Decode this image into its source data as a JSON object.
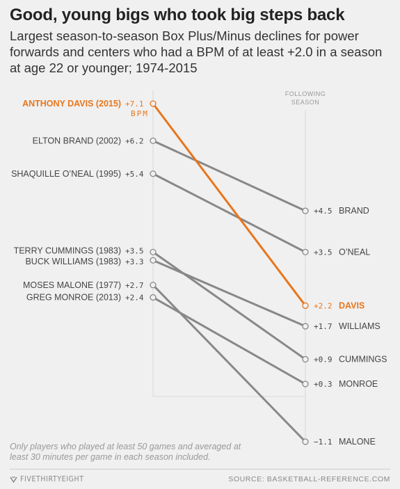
{
  "title": "Good, young bigs who took big steps back",
  "subtitle": "Largest season-to-season Box Plus/Minus declines for power forwards and centers who had a BPM of at least +2.0 in a season at age 22 or younger; 1974-2015",
  "column_header": [
    "FOLLOWING",
    "SEASON"
  ],
  "note": "Only players who played at least 50 games and averaged at least 30 minutes per game in each season included.",
  "footer": {
    "brand": "FIVETHIRTYEIGHT",
    "source": "SOURCE: BASKETBALL-REFERENCE.COM"
  },
  "colors": {
    "highlight": "#e8761d",
    "line": "#888888",
    "background": "#f0f0f0"
  },
  "chart_data": {
    "type": "slope",
    "unit_label": "BPM",
    "y_scale": "linear",
    "ylim": [
      -1.1,
      7.1
    ],
    "players": [
      {
        "left_label": "ANTHONY DAVIS (2015)",
        "right_label": "DAVIS",
        "before": 7.1,
        "after": 2.2,
        "before_text": "+7.1",
        "after_text": "+2.2",
        "highlight": true
      },
      {
        "left_label": "ELTON BRAND (2002)",
        "right_label": "BRAND",
        "before": 6.2,
        "after": 4.5,
        "before_text": "+6.2",
        "after_text": "+4.5",
        "highlight": false
      },
      {
        "left_label": "SHAQUILLE O’NEAL (1995)",
        "right_label": "O’NEAL",
        "before": 5.4,
        "after": 3.5,
        "before_text": "+5.4",
        "after_text": "+3.5",
        "highlight": false
      },
      {
        "left_label": "TERRY CUMMINGS (1983)",
        "right_label": "CUMMINGS",
        "before": 3.5,
        "after": 0.9,
        "before_text": "+3.5",
        "after_text": "+0.9",
        "highlight": false
      },
      {
        "left_label": "BUCK WILLIAMS (1983)",
        "right_label": "WILLIAMS",
        "before": 3.3,
        "after": 1.7,
        "before_text": "+3.3",
        "after_text": "+1.7",
        "highlight": false
      },
      {
        "left_label": "MOSES MALONE (1977)",
        "right_label": "MALONE",
        "before": 2.7,
        "after": -1.1,
        "before_text": "+2.7",
        "after_text": "−1.1",
        "highlight": false
      },
      {
        "left_label": "GREG MONROE (2013)",
        "right_label": "MONROE",
        "before": 2.4,
        "after": 0.3,
        "before_text": "+2.4",
        "after_text": "+0.3",
        "highlight": false
      }
    ]
  }
}
